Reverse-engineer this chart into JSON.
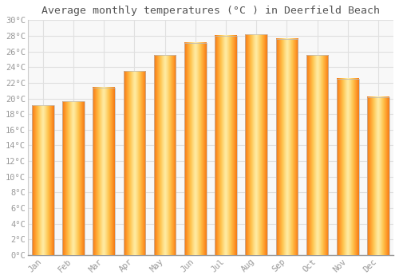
{
  "title": "Average monthly temperatures (°C ) in Deerfield Beach",
  "months": [
    "Jan",
    "Feb",
    "Mar",
    "Apr",
    "May",
    "Jun",
    "Jul",
    "Aug",
    "Sep",
    "Oct",
    "Nov",
    "Dec"
  ],
  "values": [
    19.1,
    19.6,
    21.4,
    23.5,
    25.5,
    27.1,
    28.0,
    28.2,
    27.6,
    25.5,
    22.5,
    20.2
  ],
  "bar_color_center": "#FFD54F",
  "bar_color_edge": "#FFA000",
  "bar_border_color": "#BBBBBB",
  "background_color": "#ffffff",
  "plot_bg_color": "#f8f8f8",
  "grid_color": "#e0e0e0",
  "text_color": "#999999",
  "title_color": "#555555",
  "ylim": [
    0,
    30
  ],
  "ytick_step": 2,
  "title_fontsize": 9.5,
  "tick_fontsize": 7.5
}
